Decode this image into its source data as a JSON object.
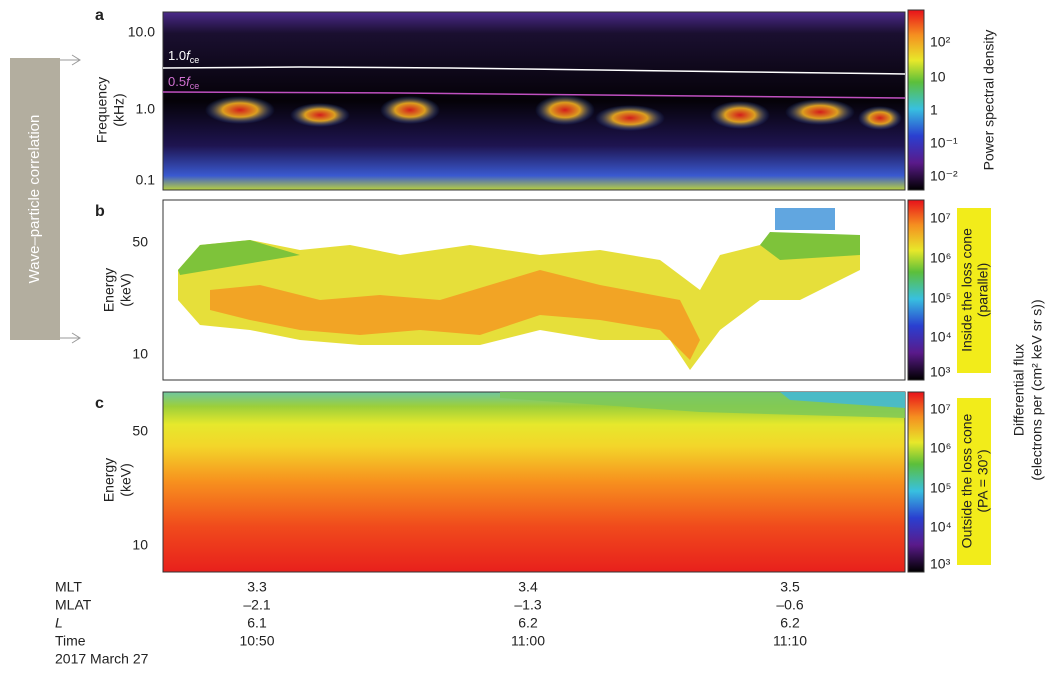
{
  "side_label": "Wave–particle correlation",
  "panels": [
    {
      "label": "a",
      "ylabel": [
        "Frequency",
        "(kHz)"
      ],
      "yticks": [
        "10.0",
        "1.0",
        "0.1"
      ],
      "annotations": [
        {
          "coef": "1.0",
          "symbol": "f",
          "sub": "ce"
        },
        {
          "coef": "0.5",
          "symbol": "f",
          "sub": "ce"
        }
      ],
      "colorbar_ticks": [
        "10²",
        "10",
        "1",
        "10⁻¹",
        "10⁻²"
      ],
      "colorbar_label": "Power spectral density"
    },
    {
      "label": "b",
      "ylabel": [
        "Energy",
        "(keV)"
      ],
      "yticks": [
        "50",
        "10"
      ],
      "colorbar_ticks": [
        "10⁷",
        "10⁶",
        "10⁵",
        "10⁴",
        "10³"
      ],
      "box": [
        "Inside the loss cone",
        "(parallel)"
      ]
    },
    {
      "label": "c",
      "ylabel": [
        "Energy",
        "(keV)"
      ],
      "yticks": [
        "50",
        "10"
      ],
      "colorbar_ticks": [
        "10⁷",
        "10⁶",
        "10⁵",
        "10⁴",
        "10³"
      ],
      "box": [
        "Outside the loss cone",
        "(PA = 30°)"
      ]
    }
  ],
  "flux_label": [
    "Differential flux",
    "(electrons per (cm² keV sr s))"
  ],
  "orbit_table": {
    "rows": [
      {
        "name": "MLT",
        "values": [
          "3.3",
          "3.4",
          "3.5"
        ]
      },
      {
        "name": "MLAT",
        "values": [
          "–2.1",
          "–1.3",
          "–0.6"
        ]
      },
      {
        "name": "L",
        "values": [
          "6.1",
          "6.2",
          "6.2"
        ]
      },
      {
        "name": "Time",
        "values": [
          "10:50",
          "11:00",
          "11:10"
        ]
      }
    ],
    "date": "2017 March 27"
  }
}
